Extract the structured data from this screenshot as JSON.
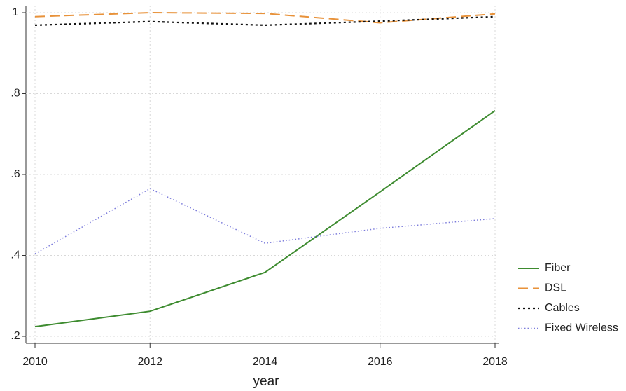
{
  "chart_data": {
    "type": "line",
    "x_label": "year",
    "x": [
      2010,
      2012,
      2014,
      2016,
      2018
    ],
    "xlim": [
      2010,
      2018
    ],
    "xticks": [
      2010,
      2012,
      2014,
      2016,
      2018
    ],
    "ylim": [
      0.2,
      1
    ],
    "yticks": [
      {
        "value": 0.2,
        "label": ".2"
      },
      {
        "value": 0.4,
        "label": ".4"
      },
      {
        "value": 0.6,
        "label": ".6"
      },
      {
        "value": 0.8,
        "label": ".8"
      },
      1
    ],
    "grid": true,
    "legend": "right",
    "series": [
      {
        "name": "Fiber",
        "color": "#3d8b2f",
        "dash": "solid",
        "values": [
          0.224,
          0.262,
          0.358,
          0.557,
          0.758
        ]
      },
      {
        "name": "DSL",
        "color": "#e8923a",
        "dash": "dash",
        "values": [
          0.99,
          1.0,
          0.998,
          0.975,
          0.997
        ]
      },
      {
        "name": "Cables",
        "color": "#111111",
        "dash": "dot",
        "values": [
          0.969,
          0.978,
          0.969,
          0.979,
          0.99
        ]
      },
      {
        "name": "Fixed Wireless",
        "color": "#7b7bdb",
        "dash": "finedot",
        "values": [
          0.404,
          0.565,
          0.43,
          0.467,
          0.491
        ]
      }
    ]
  }
}
